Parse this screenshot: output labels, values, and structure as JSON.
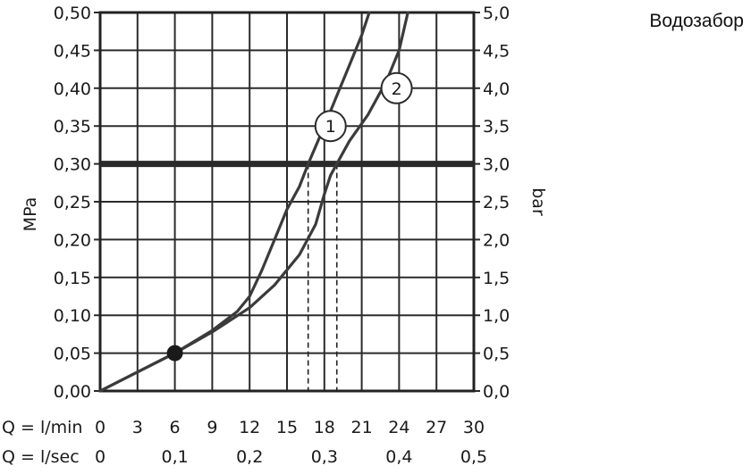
{
  "corner_title": "Водозабор",
  "chart_data": {
    "type": "line",
    "x": {
      "row1_label": "Q = l/min",
      "row1_ticks": [
        "0",
        "3",
        "6",
        "9",
        "12",
        "15",
        "18",
        "21",
        "24",
        "27",
        "30"
      ],
      "row2_label": "Q = l/sec",
      "row2_ticks": [
        "0",
        "0,1",
        "0,2",
        "0,3",
        "0,4",
        "0,5"
      ],
      "range": [
        0,
        30
      ]
    },
    "y_left": {
      "label": "MPa",
      "ticks": [
        "0,00",
        "0,05",
        "0,10",
        "0,15",
        "0,20",
        "0,25",
        "0,30",
        "0,35",
        "0,40",
        "0,45",
        "0,50"
      ],
      "range": [
        0,
        0.5
      ]
    },
    "y_right": {
      "label": "bar",
      "ticks": [
        "0,0",
        "0,5",
        "1,0",
        "1,5",
        "2,0",
        "2,5",
        "3,0",
        "3,5",
        "4,0",
        "4,5",
        "5,0"
      ],
      "range": [
        0,
        5
      ]
    },
    "grid": true,
    "reference_line": {
      "y": 0.3
    },
    "common_point": {
      "x": 6,
      "y": 0.05
    },
    "series": [
      {
        "name": "1",
        "points": [
          [
            0,
            0
          ],
          [
            6,
            0.05
          ],
          [
            9,
            0.08
          ],
          [
            11,
            0.105
          ],
          [
            12,
            0.125
          ],
          [
            13,
            0.16
          ],
          [
            14,
            0.2
          ],
          [
            15,
            0.24
          ],
          [
            16,
            0.27
          ],
          [
            16.7,
            0.3
          ],
          [
            18,
            0.35
          ],
          [
            19,
            0.39
          ],
          [
            20,
            0.43
          ],
          [
            21,
            0.47
          ],
          [
            21.6,
            0.5
          ]
        ],
        "projection_x": 16.7
      },
      {
        "name": "2",
        "points": [
          [
            0,
            0
          ],
          [
            6,
            0.05
          ],
          [
            9,
            0.078
          ],
          [
            12,
            0.11
          ],
          [
            14,
            0.14
          ],
          [
            16,
            0.18
          ],
          [
            17.3,
            0.22
          ],
          [
            18,
            0.26
          ],
          [
            18.5,
            0.285
          ],
          [
            19,
            0.3
          ],
          [
            20,
            0.33
          ],
          [
            21.5,
            0.365
          ],
          [
            23,
            0.41
          ],
          [
            24,
            0.45
          ],
          [
            24.7,
            0.5
          ]
        ],
        "projection_x": 19
      }
    ]
  }
}
